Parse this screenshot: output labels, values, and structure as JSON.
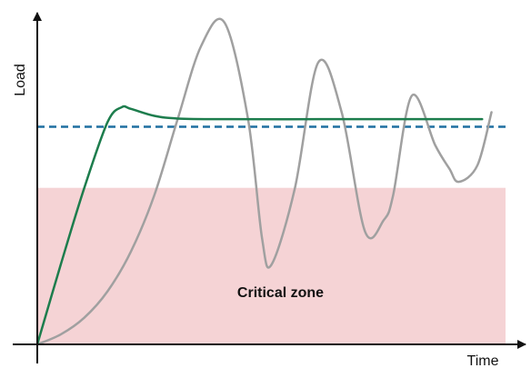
{
  "chart_data": {
    "type": "line",
    "title": "",
    "xlabel": "Time",
    "ylabel": "Load",
    "xlim": [
      0,
      100
    ],
    "ylim": [
      0,
      100
    ],
    "grid": false,
    "legend": "none",
    "regions": [
      {
        "name": "Critical zone",
        "label": "Critical zone",
        "y_from": 0,
        "y_to": 47.2,
        "x_from": 0,
        "x_to": 100,
        "color": "#f5d3d5"
      }
    ],
    "reference_lines": [
      {
        "y": 65.6,
        "style": "dashed",
        "color": "#1f6fa0"
      }
    ],
    "series": [
      {
        "color": "#1d7d4d",
        "x": [
          0,
          5,
          10,
          15,
          18,
          20,
          25,
          30,
          40,
          60,
          80,
          95
        ],
        "y": [
          0,
          24,
          47,
          67,
          71.5,
          71,
          68.9,
          68.1,
          67.9,
          67.9,
          67.9,
          67.9
        ]
      },
      {
        "color": "#a0a0a0",
        "x": [
          0,
          5,
          10,
          15,
          20,
          25,
          30,
          35,
          40,
          45,
          48,
          50,
          55,
          60,
          65,
          70,
          74,
          76,
          80,
          85,
          88,
          90,
          94,
          97
        ],
        "y": [
          0,
          3,
          8,
          16,
          28,
          45,
          68,
          90,
          97,
          68,
          32,
          24,
          47,
          85,
          70,
          34,
          37.5,
          45,
          75,
          60,
          53,
          49,
          54,
          70
        ]
      }
    ]
  }
}
